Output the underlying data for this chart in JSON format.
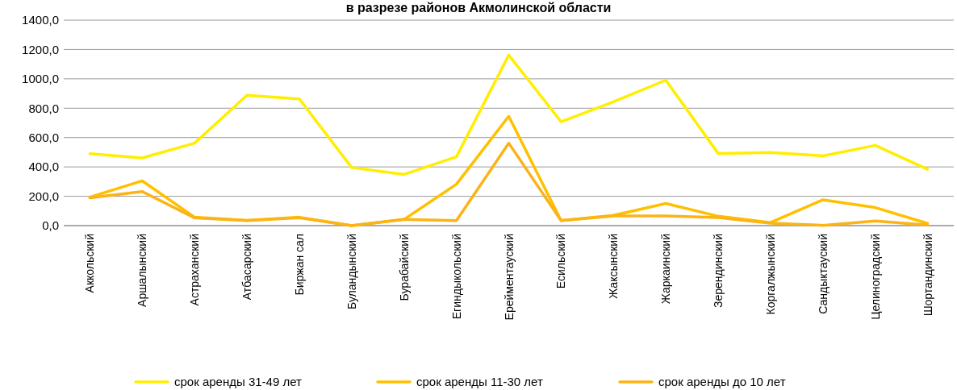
{
  "chart_data": {
    "type": "line",
    "title": "в разрезе районов Акмолинской области",
    "categories": [
      "Аккольский",
      "Аршалынский",
      "Астраханский",
      "Атбасарский",
      "Биржан сал",
      "Буландынский",
      "Бурабайский",
      "Егиндыкольский",
      "Ерейментауский",
      "Есильский",
      "Жаксынский",
      "Жаркаинский",
      "Зерендинский",
      "Коргалжынский",
      "Сандыктауский",
      "Целиноградский",
      "Шортандинский"
    ],
    "series": [
      {
        "name": "срок аренды 31-49 лет",
        "color": "#ffee00",
        "values": [
          490,
          461,
          562,
          888,
          863,
          396,
          349,
          469,
          1162,
          708,
          844,
          991,
          492,
          498,
          475,
          547,
          384
        ]
      },
      {
        "name": "срок аренды 11-30 лет",
        "color": "#ffc000",
        "values": [
          194,
          305,
          57,
          36,
          57,
          0,
          42,
          282,
          745,
          34,
          70,
          151,
          64,
          21,
          176,
          123,
          15
        ]
      },
      {
        "name": "срок аренды до 10 лет",
        "color": "#fbb316",
        "values": [
          189,
          232,
          53,
          34,
          53,
          0,
          42,
          34,
          562,
          34,
          66,
          66,
          55,
          17,
          2,
          32,
          4
        ]
      }
    ],
    "ylim": [
      0,
      1400
    ],
    "yticks": [
      {
        "value": 0,
        "label": "0,0"
      },
      {
        "value": 200,
        "label": "200,0"
      },
      {
        "value": 400,
        "label": "400,0"
      },
      {
        "value": 600,
        "label": "600,0"
      },
      {
        "value": 800,
        "label": "800,0"
      },
      {
        "value": 1000,
        "label": "1000,0"
      },
      {
        "value": 1200,
        "label": "1200,0"
      },
      {
        "value": 1400,
        "label": "1400,0"
      }
    ],
    "grid": "y",
    "legend": "bottom",
    "marker": "none",
    "line_style": "solid"
  }
}
